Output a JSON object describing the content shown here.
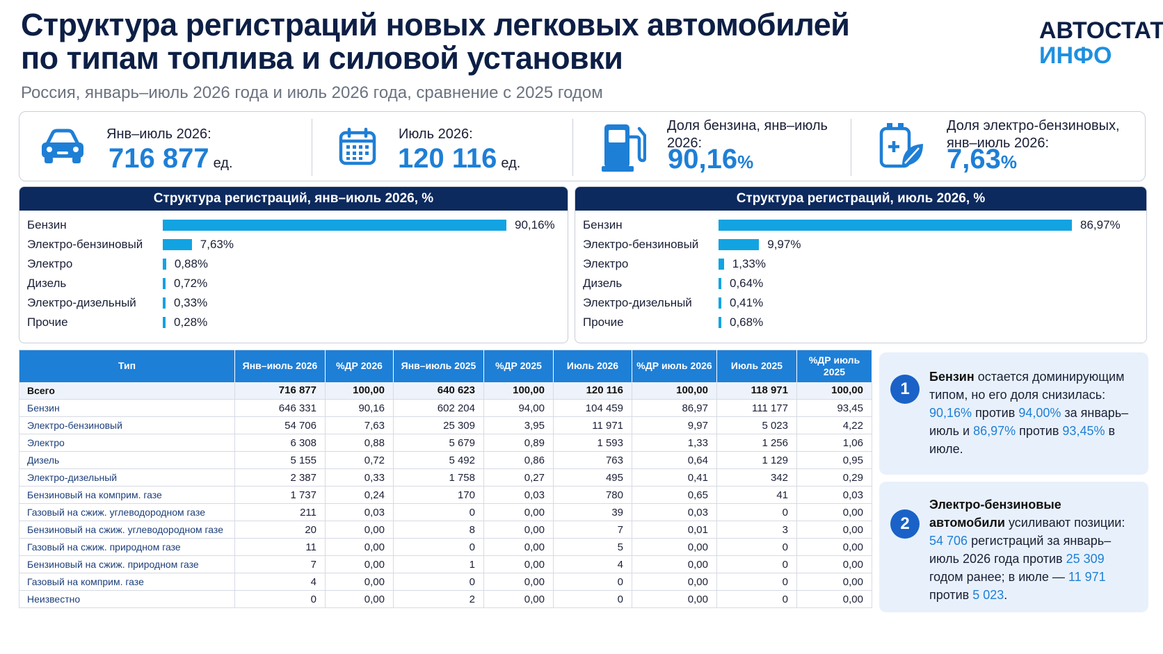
{
  "header": {
    "title": "Структура регистраций новых легковых автомобилей по типам топлива и силовой установки",
    "subtitle": "Россия, январь–июль 2026 года и июль 2026 года, сравнение с 2025 годом",
    "logo_line1": "АВТОСТАТ",
    "logo_line2": "ИНФО"
  },
  "kpis": [
    {
      "icon": "car-icon",
      "label": "Янв–июль 2026:",
      "value": "716 877",
      "unit": "ед."
    },
    {
      "icon": "calendar-icon",
      "label": "Июль 2026:",
      "value": "120 116",
      "unit": "ед."
    },
    {
      "icon": "fuel-pump-icon",
      "label": "Доля бензина, янв–июль 2026:",
      "value": "90,16",
      "unit": "%"
    },
    {
      "icon": "hybrid-battery-leaf-icon",
      "label": "Доля электро-бензиновых, янв–июль 2026:",
      "value": "7,63",
      "unit": "%"
    }
  ],
  "colors": {
    "bar": "#12a3e2",
    "header_dark": "#0d2a5e",
    "accent": "#1e7fd6"
  },
  "chart_data": [
    {
      "type": "bar",
      "orientation": "horizontal",
      "title": "Структура регистраций, янв–июль 2026, %",
      "categories": [
        "Бензин",
        "Электро-бензиновый",
        "Электро",
        "Дизель",
        "Электро-дизельный",
        "Прочие"
      ],
      "values": [
        90.16,
        7.63,
        0.88,
        0.72,
        0.33,
        0.28
      ],
      "labels": [
        "90,16%",
        "7,63%",
        "0,88%",
        "0,72%",
        "0,33%",
        "0,28%"
      ]
    },
    {
      "type": "bar",
      "orientation": "horizontal",
      "title": "Структура регистраций, июль 2026, %",
      "categories": [
        "Бензин",
        "Электро-бензиновый",
        "Электро",
        "Дизель",
        "Электро-дизельный",
        "Прочие"
      ],
      "values": [
        86.97,
        9.97,
        1.33,
        0.64,
        0.41,
        0.68
      ],
      "labels": [
        "86,97%",
        "9,97%",
        "1,33%",
        "0,64%",
        "0,41%",
        "0,68%"
      ]
    }
  ],
  "table": {
    "headers": [
      "Тип",
      "Янв–июль 2026",
      "%ДР 2026",
      "Янв–июль 2025",
      "%ДР 2025",
      "Июль 2026",
      "%ДР июль 2026",
      "Июль 2025",
      "%ДР июль 2025"
    ],
    "rows": [
      [
        "Всего",
        "716 877",
        "100,00",
        "640 623",
        "100,00",
        "120 116",
        "100,00",
        "118 971",
        "100,00"
      ],
      [
        "Бензин",
        "646 331",
        "90,16",
        "602 204",
        "94,00",
        "104 459",
        "86,97",
        "111 177",
        "93,45"
      ],
      [
        "Электро-бензиновый",
        "54 706",
        "7,63",
        "25 309",
        "3,95",
        "11 971",
        "9,97",
        "5 023",
        "4,22"
      ],
      [
        "Электро",
        "6 308",
        "0,88",
        "5 679",
        "0,89",
        "1 593",
        "1,33",
        "1 256",
        "1,06"
      ],
      [
        "Дизель",
        "5 155",
        "0,72",
        "5 492",
        "0,86",
        "763",
        "0,64",
        "1 129",
        "0,95"
      ],
      [
        "Электро-дизельный",
        "2 387",
        "0,33",
        "1 758",
        "0,27",
        "495",
        "0,41",
        "342",
        "0,29"
      ],
      [
        "Бензиновый на комприм. газе",
        "1 737",
        "0,24",
        "170",
        "0,03",
        "780",
        "0,65",
        "41",
        "0,03"
      ],
      [
        "Газовый на сжиж. углеводородном газе",
        "211",
        "0,03",
        "0",
        "0,00",
        "39",
        "0,03",
        "0",
        "0,00"
      ],
      [
        "Бензиновый на сжиж. углеводородном газе",
        "20",
        "0,00",
        "8",
        "0,00",
        "7",
        "0,01",
        "3",
        "0,00"
      ],
      [
        "Газовый на сжиж. природном газе",
        "11",
        "0,00",
        "0",
        "0,00",
        "5",
        "0,00",
        "0",
        "0,00"
      ],
      [
        "Бензиновый на сжиж. природном газе",
        "7",
        "0,00",
        "1",
        "0,00",
        "4",
        "0,00",
        "0",
        "0,00"
      ],
      [
        "Газовый на комприм. газе",
        "4",
        "0,00",
        "0",
        "0,00",
        "0",
        "0,00",
        "0",
        "0,00"
      ],
      [
        "Неизвестно",
        "0",
        "0,00",
        "2",
        "0,00",
        "0",
        "0,00",
        "0",
        "0,00"
      ]
    ]
  },
  "notes": [
    {
      "num": "1",
      "parts": [
        {
          "t": "Бензин",
          "s": "b"
        },
        {
          "t": " остается доминирующим типом, но его доля снизилась: ",
          "s": ""
        },
        {
          "t": "90,16%",
          "s": "hl"
        },
        {
          "t": " против ",
          "s": ""
        },
        {
          "t": "94,00%",
          "s": "hl"
        },
        {
          "t": " за январь–июль и ",
          "s": ""
        },
        {
          "t": "86,97%",
          "s": "hl"
        },
        {
          "t": " против ",
          "s": ""
        },
        {
          "t": "93,45%",
          "s": "hl"
        },
        {
          "t": " в июле.",
          "s": ""
        }
      ]
    },
    {
      "num": "2",
      "parts": [
        {
          "t": "Электро-бензиновые автомобили",
          "s": "b"
        },
        {
          "t": " усиливают позиции: ",
          "s": ""
        },
        {
          "t": "54 706",
          "s": "hl"
        },
        {
          "t": " регистраций за январь–июль 2026 года против ",
          "s": ""
        },
        {
          "t": "25 309",
          "s": "hl"
        },
        {
          "t": " годом ранее; в июле — ",
          "s": ""
        },
        {
          "t": "11 971",
          "s": "hl"
        },
        {
          "t": " против ",
          "s": ""
        },
        {
          "t": "5 023",
          "s": "hl"
        },
        {
          "t": ".",
          "s": ""
        }
      ]
    }
  ]
}
